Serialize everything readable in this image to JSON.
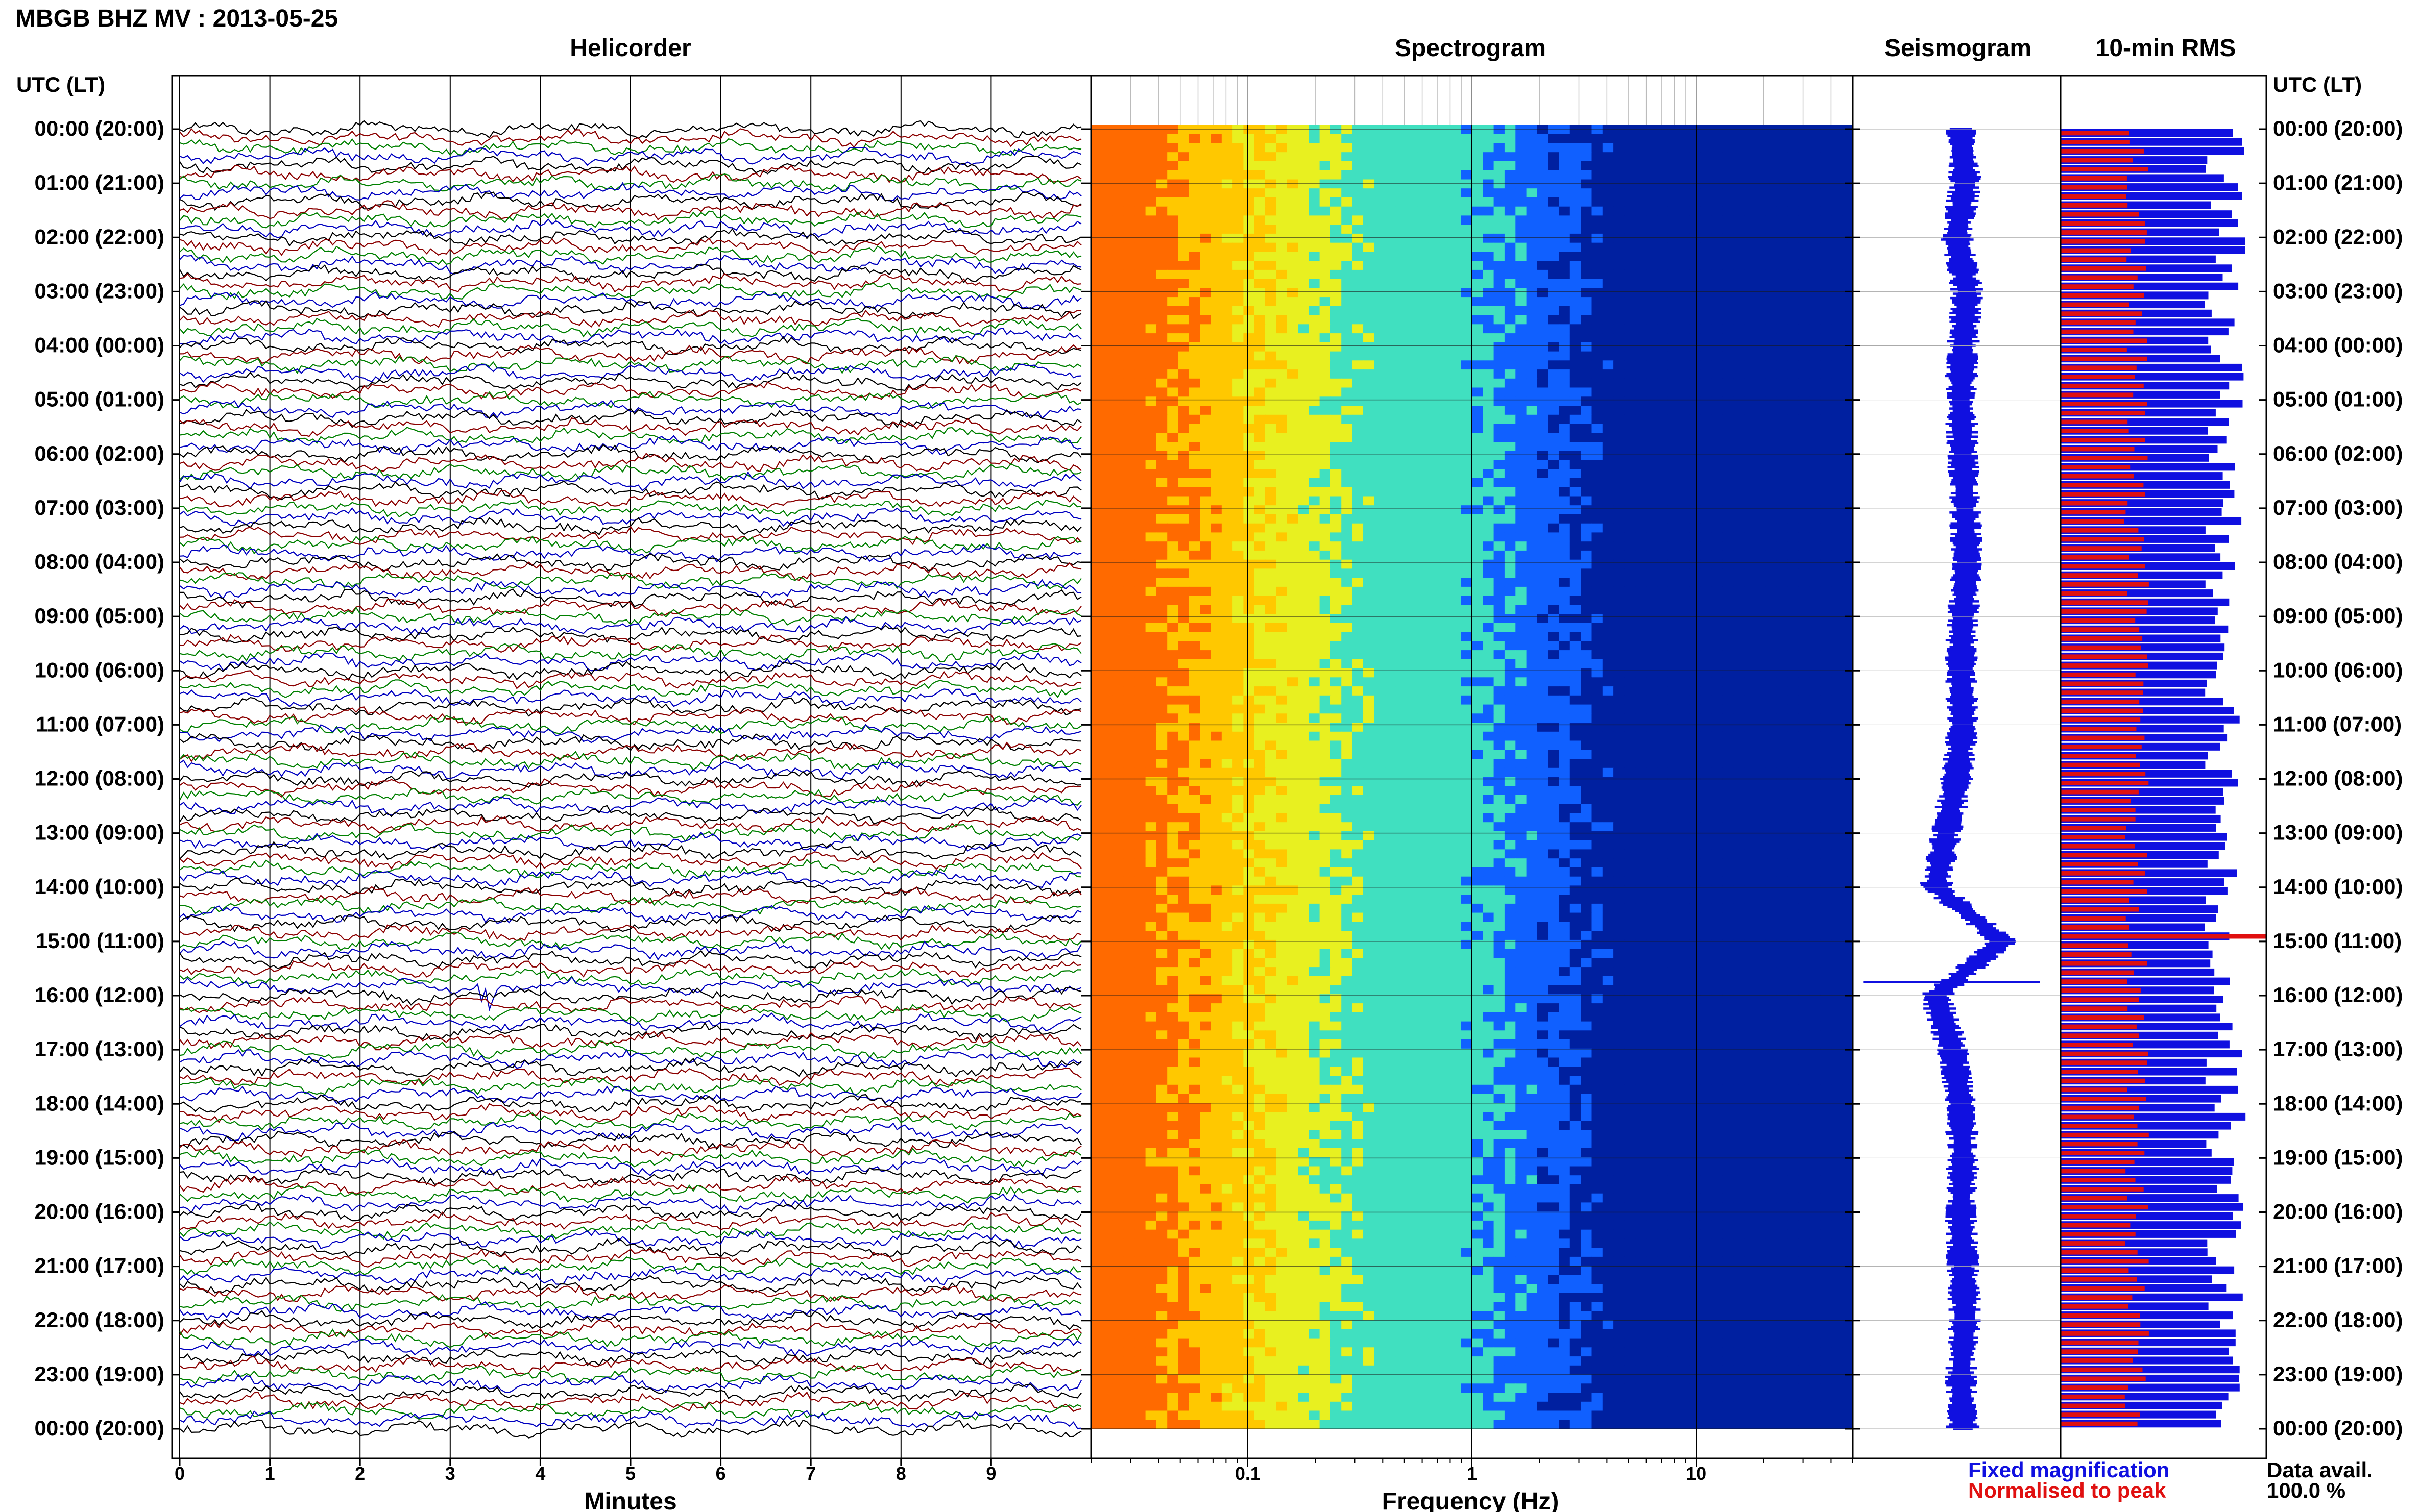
{
  "header": {
    "title": "MBGB BHZ MV : 2013-05-25"
  },
  "panels": {
    "helicorder": "Helicorder",
    "spectrogram": "Spectrogram",
    "seismogram": "Seismogram",
    "rms": "10-min RMS"
  },
  "axes": {
    "left_header": "UTC (LT)",
    "right_header": "UTC (LT)",
    "helicorder_xlabel": "Minutes",
    "spectrogram_xlabel": "Frequency (Hz)"
  },
  "legend": {
    "fixed": "Fixed magnification",
    "normalised": "Normalised to peak",
    "fixed_color": "#1010e0",
    "normalised_color": "#e01010"
  },
  "availability": {
    "label": "Data avail.",
    "value": "100.0 %"
  },
  "chart_data": [
    {
      "type": "line",
      "name": "Helicorder",
      "title": "Helicorder",
      "xlabel": "Minutes",
      "ylabel": "UTC (LT)",
      "xlim": [
        0,
        10
      ],
      "x_ticks": [
        "0",
        "1",
        "2",
        "3",
        "4",
        "5",
        "6",
        "7",
        "8",
        "9"
      ],
      "y_ticks": [
        "00:00 (20:00)",
        "01:00 (21:00)",
        "02:00 (22:00)",
        "03:00 (23:00)",
        "04:00 (00:00)",
        "05:00 (01:00)",
        "06:00 (02:00)",
        "07:00 (03:00)",
        "08:00 (04:00)",
        "09:00 (05:00)",
        "10:00 (06:00)",
        "11:00 (07:00)",
        "12:00 (08:00)",
        "13:00 (09:00)",
        "14:00 (10:00)",
        "15:00 (11:00)",
        "16:00 (12:00)",
        "17:00 (13:00)",
        "18:00 (14:00)",
        "19:00 (15:00)",
        "20:00 (16:00)",
        "21:00 (17:00)",
        "22:00 (18:00)",
        "23:00 (19:00)",
        "00:00 (20:00)"
      ],
      "traces_per_hour": 6,
      "trace_colors": [
        "#000000",
        "#8b0000",
        "#008000",
        "#0000c0"
      ],
      "events": [
        {
          "time_utc": "15:50",
          "minute": 3.4
        }
      ],
      "grid": true
    },
    {
      "type": "heatmap",
      "name": "Spectrogram",
      "title": "Spectrogram",
      "xlabel": "Frequency (Hz)",
      "x_scale": "log",
      "xlim": [
        0.02,
        50
      ],
      "x_ticks": [
        "0.1",
        "1",
        "10"
      ],
      "ylim_hours": [
        0,
        24
      ],
      "colormap": [
        "#ff6a00",
        "#ffc800",
        "#e8f020",
        "#40e0c0",
        "#1060ff",
        "#0020a0"
      ],
      "grid": true
    },
    {
      "type": "line",
      "name": "Seismogram",
      "title": "Seismogram",
      "note_hours": [
        0,
        24
      ],
      "envelope_center": [
        0.52,
        0.54,
        0.5,
        0.55,
        0.53,
        0.52,
        0.53,
        0.54,
        0.55,
        0.53,
        0.52,
        0.53,
        0.5,
        0.45,
        0.4,
        0.72,
        0.4,
        0.48,
        0.52,
        0.53,
        0.52,
        0.53,
        0.54,
        0.52,
        0.53
      ]
    },
    {
      "type": "bar",
      "name": "10-min RMS",
      "title": "10-min RMS",
      "orientation": "horizontal",
      "bins_per_hour": 6,
      "hours": 24,
      "series": [
        {
          "name": "Fixed magnification",
          "mean_fraction": 0.8
        },
        {
          "name": "Normalised to peak",
          "mean_fraction": 0.37,
          "peak_time_utc": "14:50"
        }
      ]
    }
  ]
}
